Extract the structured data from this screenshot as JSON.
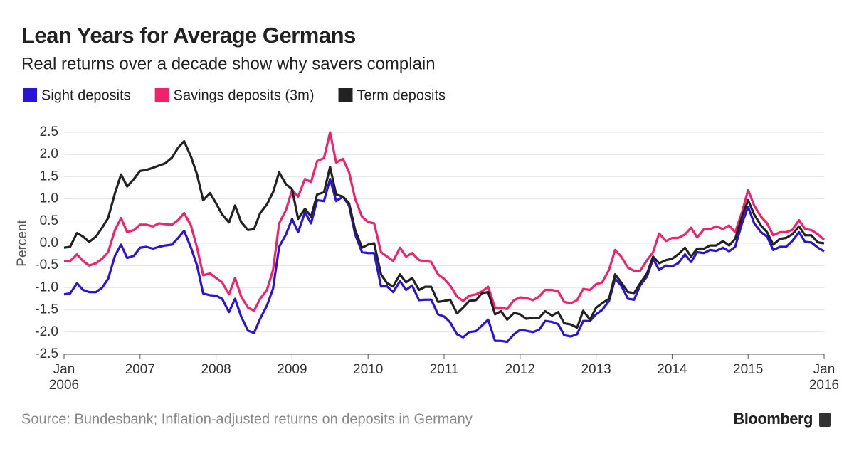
{
  "chart_data": {
    "type": "line",
    "title": "Lean Years for Average Germans",
    "subtitle": "Real returns over a decade show why savers complain",
    "y_label": "Percent",
    "source": "Source: Bundesbank; Inflation-adjusted returns on deposits in Germany",
    "brand": "Bloomberg",
    "legend": "top-left",
    "grid": true,
    "x": [
      2006,
      2006.08,
      2006.17,
      2006.25,
      2006.33,
      2006.42,
      2006.5,
      2006.58,
      2006.67,
      2006.75,
      2006.83,
      2006.92,
      2007,
      2007.08,
      2007.17,
      2007.25,
      2007.33,
      2007.42,
      2007.5,
      2007.58,
      2007.67,
      2007.75,
      2007.83,
      2007.92,
      2008,
      2008.08,
      2008.17,
      2008.25,
      2008.33,
      2008.42,
      2008.5,
      2008.58,
      2008.67,
      2008.75,
      2008.83,
      2008.92,
      2009,
      2009.08,
      2009.17,
      2009.25,
      2009.33,
      2009.42,
      2009.5,
      2009.58,
      2009.67,
      2009.75,
      2009.83,
      2009.92,
      2010,
      2010.08,
      2010.17,
      2010.25,
      2010.33,
      2010.42,
      2010.5,
      2010.58,
      2010.67,
      2010.75,
      2010.83,
      2010.92,
      2011,
      2011.08,
      2011.17,
      2011.25,
      2011.33,
      2011.42,
      2011.5,
      2011.58,
      2011.67,
      2011.75,
      2011.83,
      2011.92,
      2012,
      2012.08,
      2012.17,
      2012.25,
      2012.33,
      2012.42,
      2012.5,
      2012.58,
      2012.67,
      2012.75,
      2012.83,
      2012.92,
      2013,
      2013.08,
      2013.17,
      2013.25,
      2013.33,
      2013.42,
      2013.5,
      2013.58,
      2013.67,
      2013.75,
      2013.83,
      2013.92,
      2014,
      2014.08,
      2014.17,
      2014.25,
      2014.33,
      2014.42,
      2014.5,
      2014.58,
      2014.67,
      2014.75,
      2014.83,
      2014.92,
      2015,
      2015.08,
      2015.17,
      2015.25,
      2015.33,
      2015.42,
      2015.5,
      2015.58,
      2015.67,
      2015.75,
      2015.83,
      2015.92,
      2016
    ],
    "xlim": [
      2006,
      2016
    ],
    "xticks": [
      {
        "value": 2006,
        "label": "Jan 2006"
      },
      2007,
      2008,
      2009,
      2010,
      2011,
      2012,
      2013,
      2014,
      2015,
      {
        "value": 2016,
        "label": "Jan 2016"
      }
    ],
    "ylim": [
      -2.5,
      2.5
    ],
    "yticks": [
      2.5,
      {
        "value": 2,
        "label": "2.0"
      },
      1.5,
      {
        "value": 1,
        "label": "1.0"
      },
      0.5,
      {
        "value": 0,
        "label": "0.0"
      },
      -0.5,
      {
        "value": -1,
        "label": "-1.0"
      },
      -1.5,
      {
        "value": -2,
        "label": "-2.0"
      },
      -2.5
    ],
    "series": [
      {
        "name": "Sight deposits",
        "color": "#2b14d6",
        "values": [
          -1.15,
          -1.13,
          -0.9,
          -1.05,
          -1.1,
          -1.1,
          -1.0,
          -0.8,
          -0.28,
          -0.03,
          -0.33,
          -0.28,
          -0.1,
          -0.08,
          -0.12,
          -0.08,
          -0.05,
          -0.03,
          0.12,
          0.28,
          -0.1,
          -0.5,
          -1.13,
          -1.17,
          -1.18,
          -1.25,
          -1.55,
          -1.25,
          -1.65,
          -1.97,
          -2.02,
          -1.7,
          -1.4,
          -1.02,
          -0.08,
          0.2,
          0.55,
          0.25,
          0.7,
          0.45,
          0.97,
          0.95,
          1.45,
          0.95,
          1.05,
          0.85,
          0.2,
          -0.2,
          -0.22,
          -0.22,
          -0.97,
          -0.97,
          -1.1,
          -0.85,
          -1.05,
          -0.95,
          -1.28,
          -1.27,
          -1.27,
          -1.6,
          -1.65,
          -1.78,
          -2.05,
          -2.12,
          -2.0,
          -1.98,
          -1.85,
          -1.72,
          -2.2,
          -2.2,
          -2.22,
          -2.05,
          -1.95,
          -1.97,
          -2.0,
          -1.95,
          -1.75,
          -1.77,
          -1.82,
          -2.07,
          -2.1,
          -2.05,
          -1.75,
          -1.75,
          -1.6,
          -1.5,
          -1.3,
          -0.8,
          -0.95,
          -1.25,
          -1.27,
          -0.95,
          -0.75,
          -0.35,
          -0.6,
          -0.5,
          -0.52,
          -0.45,
          -0.25,
          -0.42,
          -0.2,
          -0.22,
          -0.15,
          -0.17,
          -0.1,
          -0.18,
          -0.08,
          0.45,
          0.82,
          0.45,
          0.25,
          0.15,
          -0.15,
          -0.08,
          -0.08,
          0.05,
          0.25,
          0.03,
          0.02,
          -0.1,
          -0.18
        ]
      },
      {
        "name": "Savings deposits (3m)",
        "color": "#f2216c",
        "values": [
          -0.4,
          -0.4,
          -0.25,
          -0.4,
          -0.5,
          -0.45,
          -0.35,
          -0.2,
          0.3,
          0.57,
          0.25,
          0.3,
          0.42,
          0.42,
          0.38,
          0.45,
          0.43,
          0.42,
          0.52,
          0.68,
          0.4,
          -0.1,
          -0.72,
          -0.68,
          -0.78,
          -0.88,
          -1.15,
          -0.78,
          -1.2,
          -1.45,
          -1.52,
          -1.25,
          -1.05,
          -0.6,
          0.45,
          0.75,
          1.2,
          1.05,
          1.45,
          1.38,
          1.85,
          1.92,
          2.5,
          1.82,
          1.9,
          1.6,
          1.0,
          0.6,
          0.48,
          0.45,
          -0.2,
          -0.3,
          -0.4,
          -0.1,
          -0.3,
          -0.22,
          -0.38,
          -0.4,
          -0.42,
          -0.7,
          -0.8,
          -0.95,
          -1.2,
          -1.3,
          -1.18,
          -1.15,
          -1.08,
          -0.98,
          -1.45,
          -1.45,
          -1.48,
          -1.28,
          -1.22,
          -1.23,
          -1.28,
          -1.2,
          -1.05,
          -1.05,
          -1.08,
          -1.32,
          -1.35,
          -1.28,
          -1.03,
          -1.05,
          -0.92,
          -0.88,
          -0.6,
          -0.15,
          -0.3,
          -0.55,
          -0.62,
          -0.62,
          -0.38,
          -0.2,
          0.22,
          0.05,
          0.12,
          0.12,
          0.2,
          0.35,
          0.13,
          0.32,
          0.32,
          0.38,
          0.32,
          0.4,
          0.25,
          0.7,
          1.2,
          0.85,
          0.6,
          0.45,
          0.18,
          0.25,
          0.25,
          0.3,
          0.52,
          0.32,
          0.3,
          0.2,
          0.08
        ]
      },
      {
        "name": "Term deposits",
        "color": "#222222",
        "values": [
          -0.1,
          -0.08,
          0.23,
          0.15,
          0.03,
          0.15,
          0.35,
          0.57,
          1.13,
          1.55,
          1.28,
          1.45,
          1.63,
          1.65,
          1.7,
          1.75,
          1.8,
          1.93,
          2.15,
          2.3,
          1.95,
          1.55,
          0.97,
          1.13,
          0.9,
          0.65,
          0.47,
          0.85,
          0.48,
          0.3,
          0.32,
          0.68,
          0.88,
          1.15,
          1.6,
          1.33,
          1.22,
          0.55,
          0.78,
          0.6,
          1.1,
          1.15,
          1.72,
          1.1,
          1.05,
          0.9,
          0.3,
          -0.1,
          -0.03,
          0.0,
          -0.7,
          -0.9,
          -0.97,
          -0.7,
          -0.88,
          -0.78,
          -1.05,
          -0.98,
          -0.98,
          -1.32,
          -1.3,
          -1.27,
          -1.58,
          -1.45,
          -1.3,
          -1.28,
          -1.12,
          -1.1,
          -1.6,
          -1.53,
          -1.72,
          -1.57,
          -1.6,
          -1.7,
          -1.68,
          -1.68,
          -1.53,
          -1.63,
          -1.55,
          -1.8,
          -1.83,
          -1.9,
          -1.52,
          -1.72,
          -1.45,
          -1.35,
          -1.25,
          -0.7,
          -0.88,
          -1.1,
          -1.12,
          -0.9,
          -0.68,
          -0.3,
          -0.45,
          -0.38,
          -0.35,
          -0.25,
          -0.1,
          -0.3,
          -0.12,
          -0.12,
          -0.05,
          -0.05,
          0.05,
          -0.05,
          0.1,
          0.6,
          0.97,
          0.65,
          0.4,
          0.25,
          -0.03,
          0.1,
          0.12,
          0.2,
          0.38,
          0.18,
          0.18,
          0.02,
          0.0
        ]
      }
    ]
  }
}
